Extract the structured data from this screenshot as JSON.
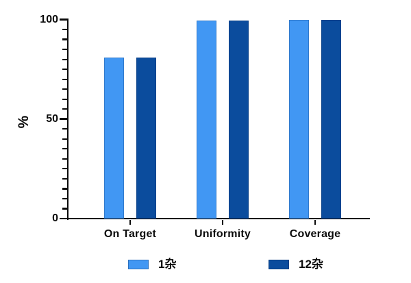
{
  "chart_data": {
    "type": "bar",
    "title": "",
    "categories": [
      "On Target",
      "Uniformity",
      "Coverage"
    ],
    "series": [
      {
        "name": "1杂",
        "color": "#4197F3",
        "values": [
          81,
          99.5,
          100
        ]
      },
      {
        "name": "12杂",
        "color": "#0B4C9D",
        "values": [
          81,
          99.5,
          100
        ]
      }
    ],
    "xlabel": "",
    "ylabel": "%",
    "ylim": [
      0,
      100
    ],
    "yticks_major": [
      0,
      50,
      100
    ],
    "ytick_minor_step": 5,
    "grid": false,
    "legend_position": "bottom",
    "axis_color": "#0a0a0a",
    "background_color": "#ffffff"
  }
}
